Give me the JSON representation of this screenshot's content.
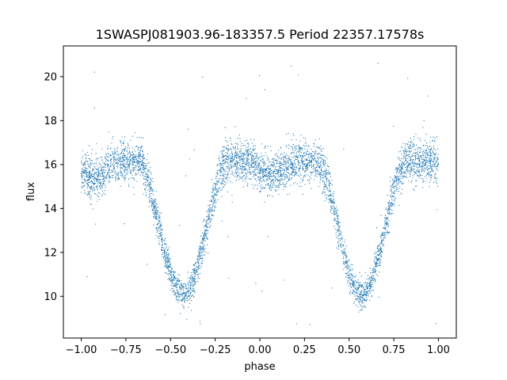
{
  "chart_data": {
    "type": "scatter",
    "title": "1SWASPJ081903.96-183357.5 Period 22357.17578s",
    "xlabel": "phase",
    "ylabel": "flux",
    "xlim": [
      -1.1,
      1.1
    ],
    "ylim": [
      8.1,
      21.4
    ],
    "grid": false,
    "x_ticks": [
      -1.0,
      -0.75,
      -0.5,
      -0.25,
      0.0,
      0.25,
      0.5,
      0.75,
      1.0
    ],
    "x_tick_labels": [
      "−1.00",
      "−0.75",
      "−0.50",
      "−0.25",
      "0.00",
      "0.25",
      "0.50",
      "0.75",
      "1.00"
    ],
    "y_ticks": [
      10,
      12,
      14,
      16,
      18,
      20
    ],
    "y_tick_labels": [
      "10",
      "12",
      "14",
      "16",
      "18",
      "20"
    ],
    "series_color": "#1f77b4",
    "light_curve": {
      "description_values": "flux vs phase; eclipse-shaped dips",
      "baseline_flux": 16.2,
      "baseline_scatter": 0.45,
      "primary_dips": [
        {
          "phase_center": -0.43,
          "min_flux": 10.2,
          "half_width": 0.24
        },
        {
          "phase_center": 0.57,
          "min_flux": 10.2,
          "half_width": 0.24
        }
      ],
      "secondary_dips": [
        {
          "phase_center": -0.93,
          "min_flux": 15.4,
          "half_width": 0.12
        },
        {
          "phase_center": 0.07,
          "min_flux": 15.6,
          "half_width": 0.12
        }
      ],
      "phase_range": [
        -1.0,
        1.0
      ],
      "outlier_flux_range": [
        8.7,
        20.7
      ]
    }
  }
}
